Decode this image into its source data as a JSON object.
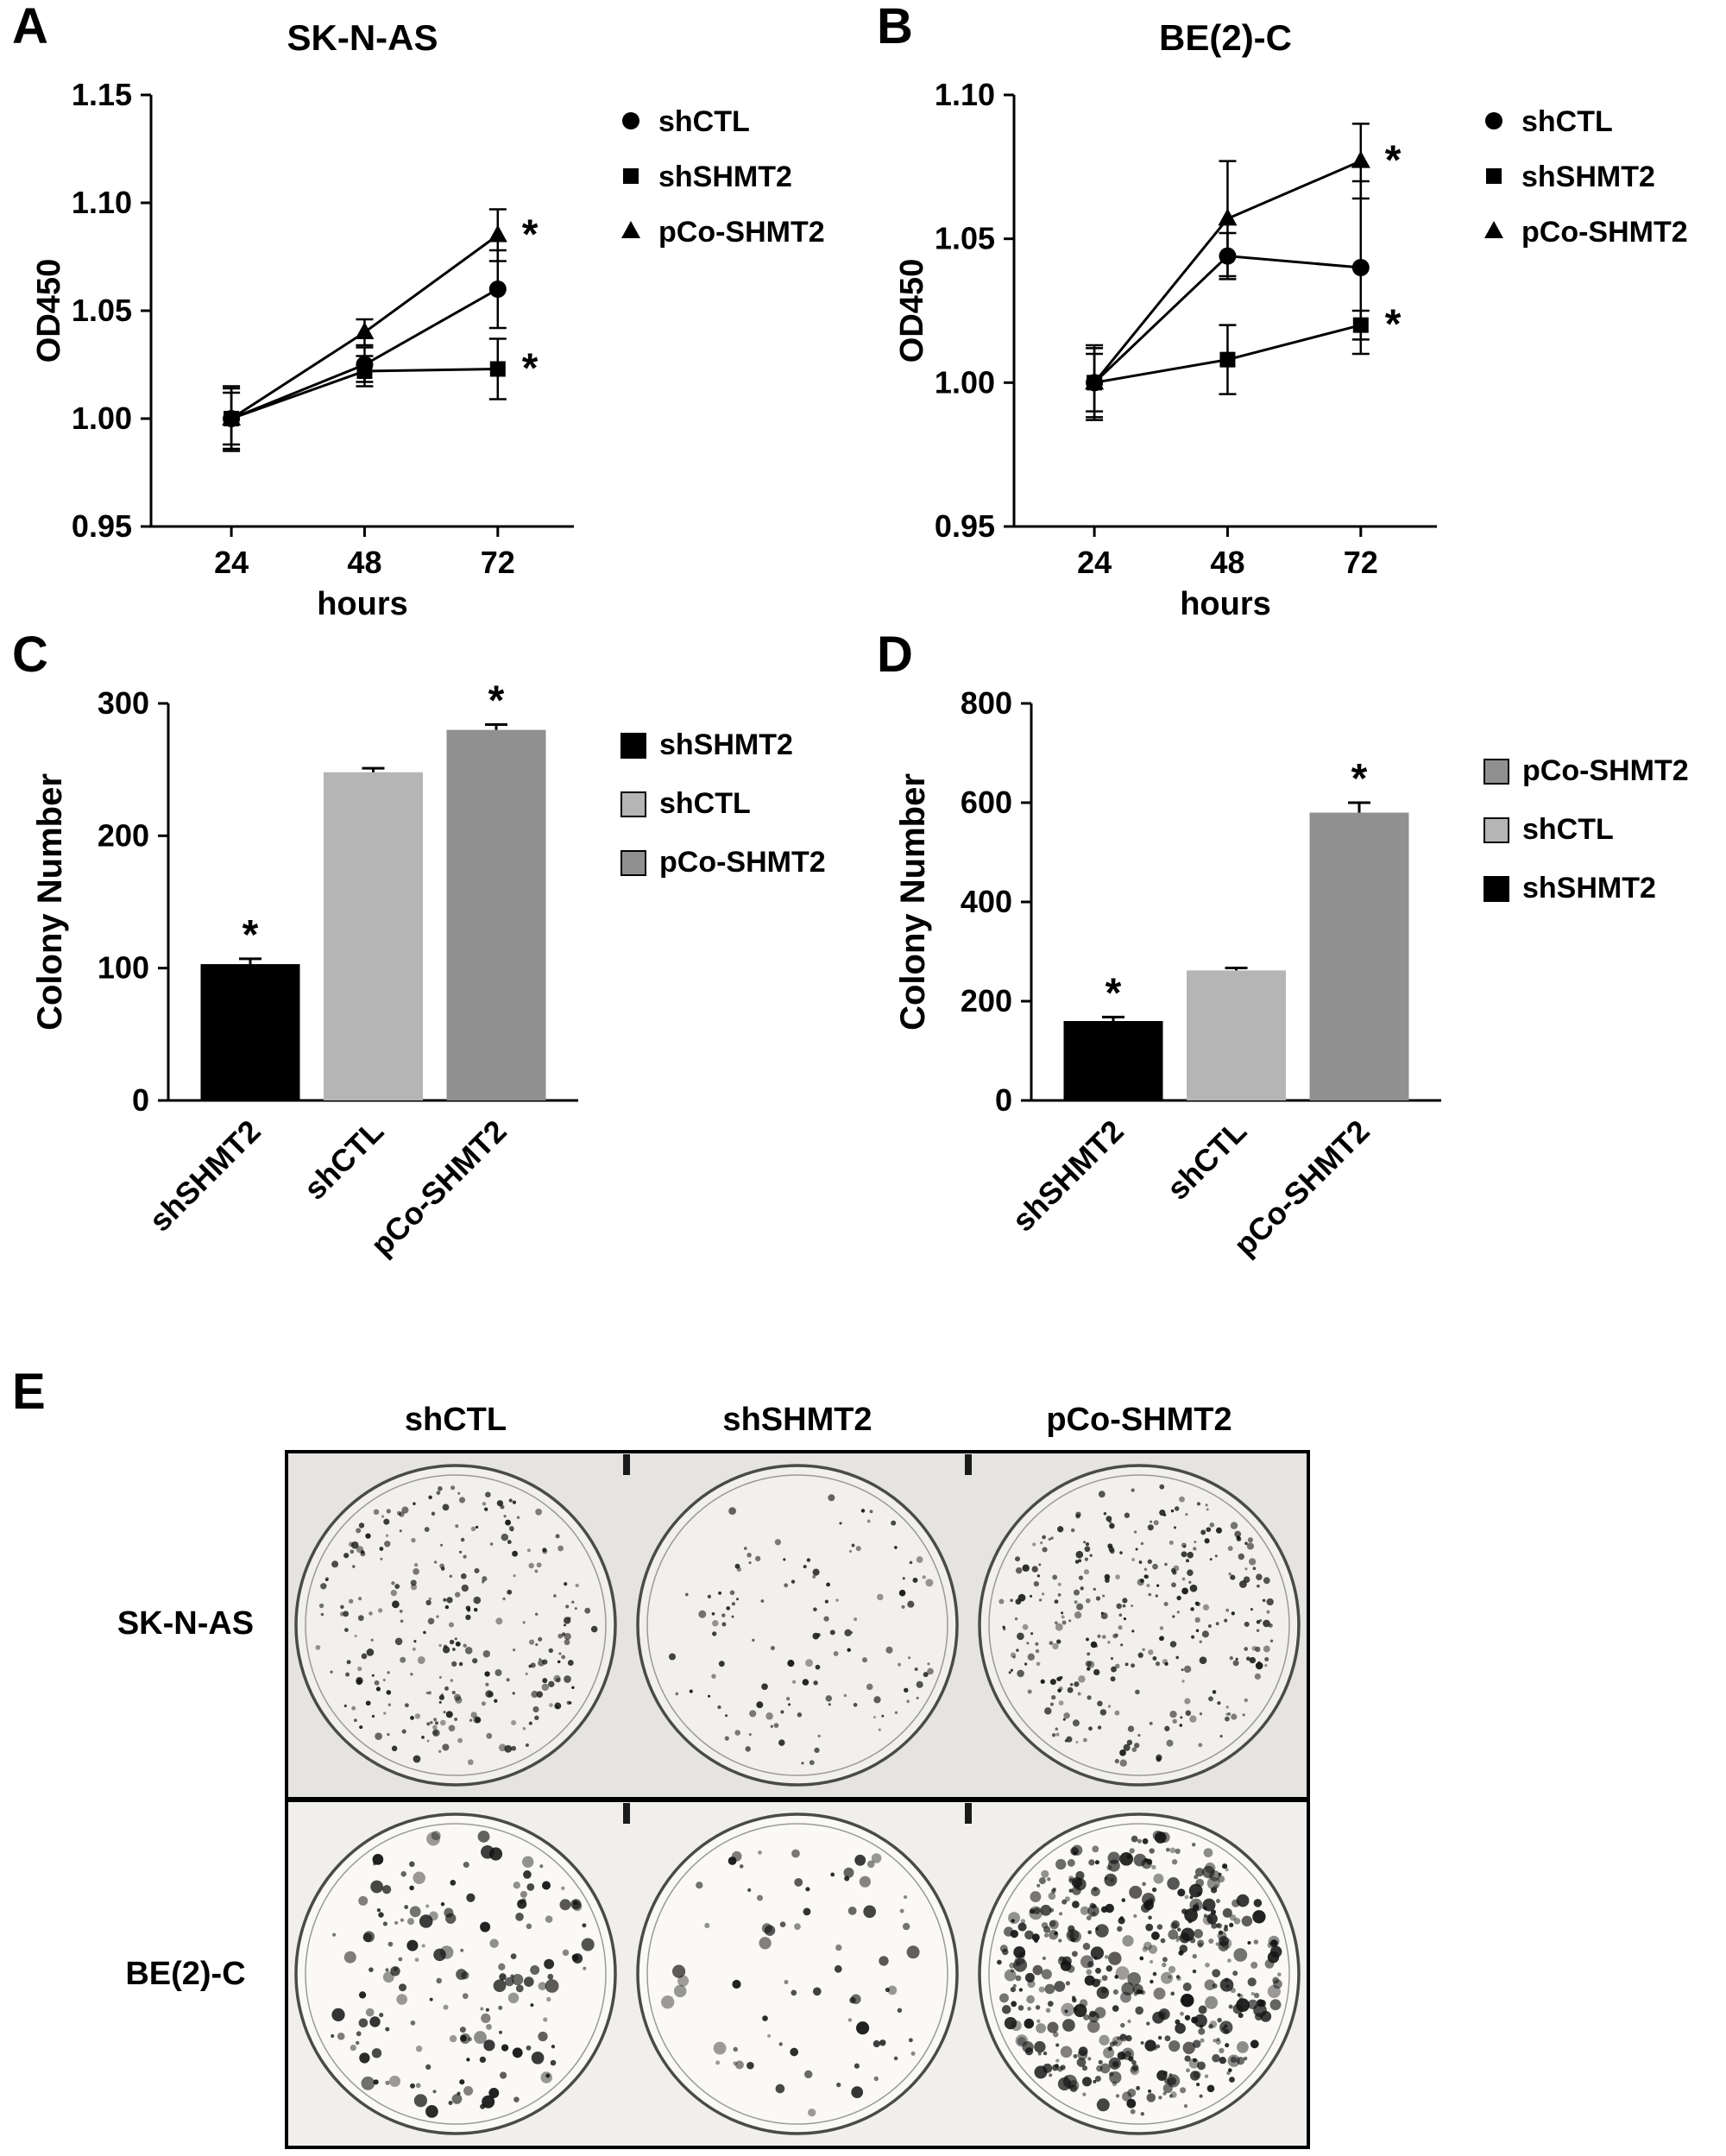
{
  "figure": {
    "panels": [
      {
        "letter": "A"
      },
      {
        "letter": "B"
      },
      {
        "letter": "C"
      },
      {
        "letter": "D"
      },
      {
        "letter": "E"
      }
    ]
  },
  "chart_data": [
    {
      "id": "A",
      "type": "line",
      "title": "SK-N-AS",
      "xlabel": "hours",
      "ylabel": "OD450",
      "x": [
        24,
        48,
        72
      ],
      "ylim": [
        0.95,
        1.15
      ],
      "yticks": [
        0.95,
        1.0,
        1.05,
        1.1,
        1.15
      ],
      "grid": false,
      "legend_position": "right",
      "series": [
        {
          "name": "shCTL",
          "marker": "circle",
          "color": "#000000",
          "values": [
            1.0,
            1.025,
            1.06
          ],
          "errors": [
            0.015,
            0.008,
            0.018
          ],
          "sig_at_72h": null
        },
        {
          "name": "shSHMT2",
          "marker": "square",
          "color": "#000000",
          "values": [
            1.0,
            1.022,
            1.023
          ],
          "errors": [
            0.014,
            0.007,
            0.014
          ],
          "sig_at_72h": "*"
        },
        {
          "name": "pCo-SHMT2",
          "marker": "triangle",
          "color": "#000000",
          "values": [
            1.0,
            1.04,
            1.085
          ],
          "errors": [
            0.012,
            0.006,
            0.012
          ],
          "sig_at_72h": "*"
        }
      ]
    },
    {
      "id": "B",
      "type": "line",
      "title": "BE(2)-C",
      "xlabel": "hours",
      "ylabel": "OD450",
      "x": [
        24,
        48,
        72
      ],
      "ylim": [
        0.95,
        1.1
      ],
      "yticks": [
        0.95,
        1.0,
        1.05,
        1.1
      ],
      "grid": false,
      "legend_position": "right",
      "series": [
        {
          "name": "shCTL",
          "marker": "circle",
          "color": "#000000",
          "values": [
            1.0,
            1.044,
            1.04
          ],
          "errors": [
            0.013,
            0.008,
            0.03
          ],
          "sig_at_72h": null
        },
        {
          "name": "shSHMT2",
          "marker": "square",
          "color": "#000000",
          "values": [
            1.0,
            1.008,
            1.02
          ],
          "errors": [
            0.012,
            0.012,
            0.005
          ],
          "sig_at_72h": "*"
        },
        {
          "name": "pCo-SHMT2",
          "marker": "triangle",
          "color": "#000000",
          "values": [
            1.0,
            1.057,
            1.077
          ],
          "errors": [
            0.01,
            0.02,
            0.013
          ],
          "sig_at_72h": "*"
        }
      ]
    },
    {
      "id": "C",
      "type": "bar",
      "ylabel": "Colony Number",
      "categories": [
        "shSHMT2",
        "shCTL",
        "pCo-SHMT2"
      ],
      "values": [
        103,
        248,
        280
      ],
      "errors": [
        4,
        3,
        4
      ],
      "sig": [
        "*",
        null,
        "*"
      ],
      "bar_colors": [
        "#000000",
        "#b5b5b5",
        "#909090"
      ],
      "ylim": [
        0,
        300
      ],
      "yticks": [
        0,
        100,
        200,
        300
      ],
      "legend": [
        {
          "label": "shSHMT2",
          "color": "#000000"
        },
        {
          "label": "shCTL",
          "color": "#b5b5b5"
        },
        {
          "label": "pCo-SHMT2",
          "color": "#909090"
        }
      ]
    },
    {
      "id": "D",
      "type": "bar",
      "ylabel": "Colony Number",
      "categories": [
        "shSHMT2",
        "shCTL",
        "pCo-SHMT2"
      ],
      "values": [
        160,
        262,
        580
      ],
      "errors": [
        8,
        5,
        20
      ],
      "sig": [
        "*",
        null,
        "*"
      ],
      "bar_colors": [
        "#000000",
        "#b5b5b5",
        "#909090"
      ],
      "ylim": [
        0,
        800
      ],
      "yticks": [
        0,
        200,
        400,
        600,
        800
      ],
      "legend": [
        {
          "label": "pCo-SHMT2",
          "color": "#909090"
        },
        {
          "label": "shCTL",
          "color": "#b5b5b5"
        },
        {
          "label": "shSHMT2",
          "color": "#000000"
        }
      ]
    },
    {
      "id": "E",
      "type": "colony-assay-images",
      "column_labels": [
        "shCTL",
        "shSHMT2",
        "pCo-SHMT2"
      ],
      "row_labels": [
        "SK-N-AS",
        "BE(2)-C"
      ],
      "wells": [
        [
          {
            "colony_density": "medium",
            "count": 270
          },
          {
            "colony_density": "low",
            "count": 120
          },
          {
            "colony_density": "high",
            "count": 320
          }
        ],
        [
          {
            "colony_density": "medium",
            "count": 160
          },
          {
            "colony_density": "low",
            "count": 70
          },
          {
            "colony_density": "high",
            "count": 480
          }
        ]
      ]
    }
  ]
}
